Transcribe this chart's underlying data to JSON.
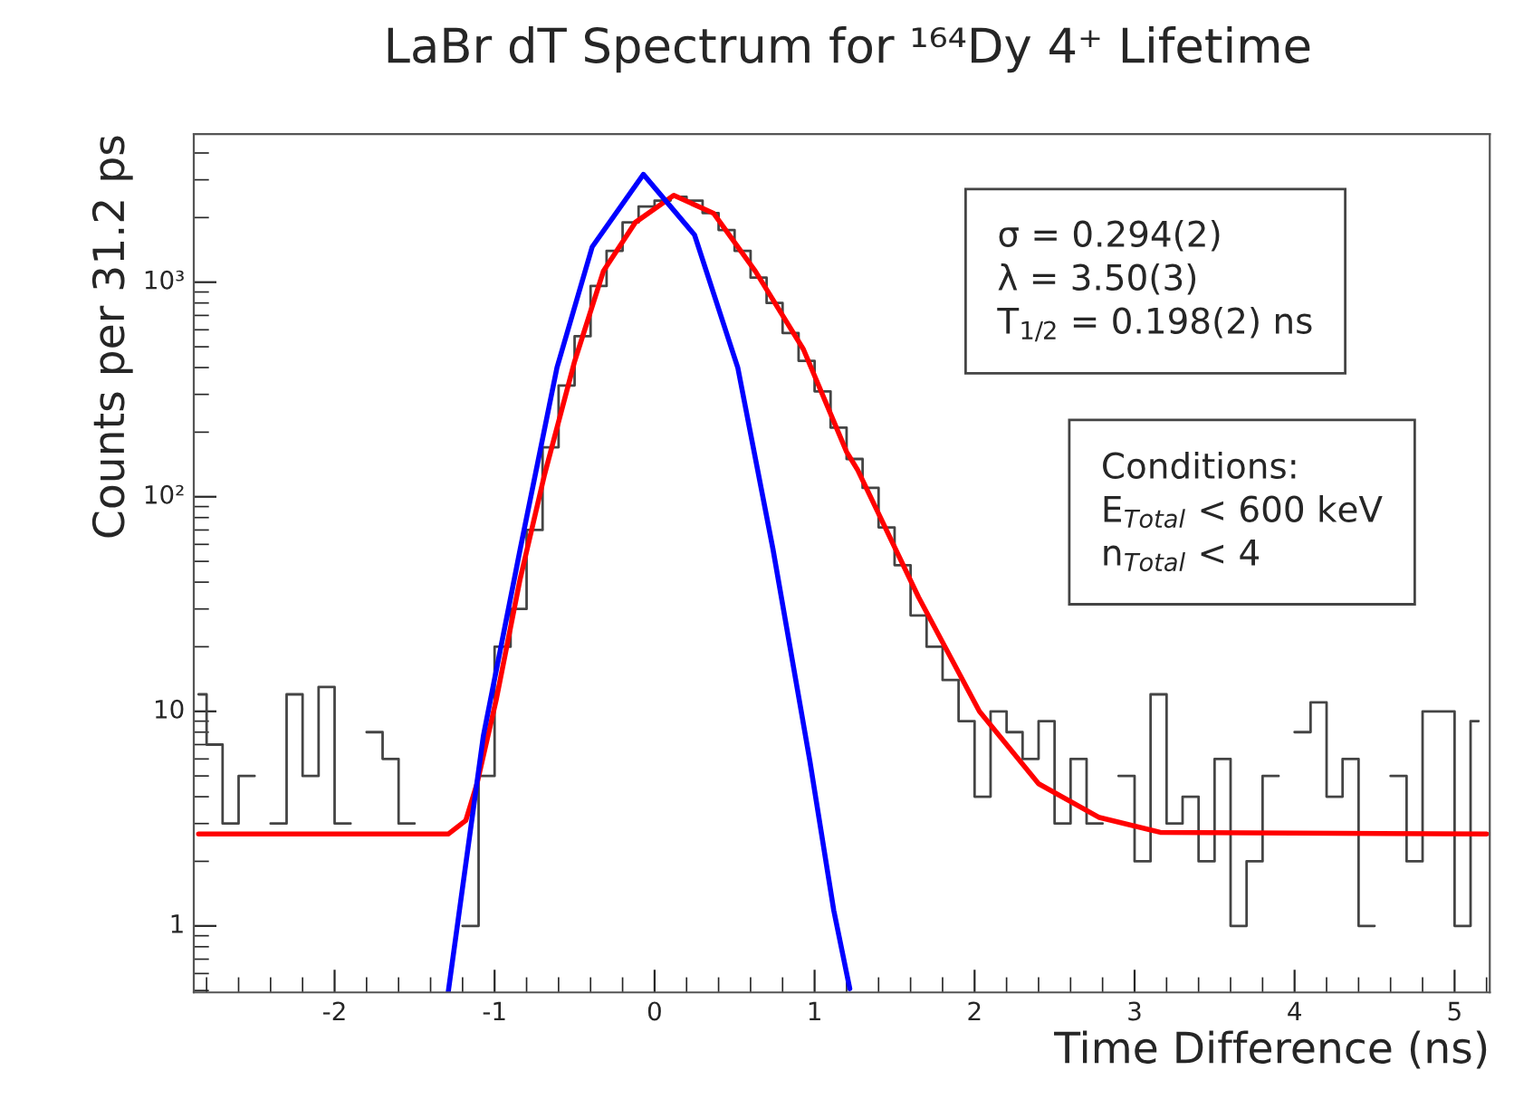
{
  "chart_data": {
    "type": "step",
    "title": "LaBr dT Spectrum for ¹⁶⁴Dy 4⁺ Lifetime",
    "xlabel": "Time Difference (ns)",
    "ylabel": "Counts per 31.2 ps",
    "log": "y",
    "xlim": [
      -2.88,
      5.22
    ],
    "ylim": [
      0.49,
      4900
    ],
    "xticks": [
      -2,
      -1,
      0,
      1,
      2,
      3,
      4,
      5
    ],
    "yticks": [
      1,
      10,
      {
        "value": 100,
        "label": "10²"
      },
      {
        "value": 1000,
        "label": "10³"
      }
    ],
    "grid": false,
    "legend": false,
    "annotations": [
      "σ = 0.294(2)\nλ = 3.50(3)\nT$_{1/2}$ = 0.198(2) ns",
      "Conditions:\nE$_{Total}$ < 600 keV\nn$_{Total}$ < 4"
    ],
    "series": [
      {
        "color": "#444444",
        "x": [
          -2.85,
          -2.75,
          -2.65,
          -2.55,
          -2.45,
          -2.35,
          -2.25,
          -2.15,
          -2.05,
          -1.95,
          -1.85,
          -1.75,
          -1.65,
          -1.55,
          -1.45,
          -1.35,
          -1.25,
          -1.15,
          -1.05,
          -0.95,
          -0.85,
          -0.75,
          -0.65,
          -0.55,
          -0.45,
          -0.35,
          -0.25,
          -0.15,
          -0.05,
          0.05,
          0.15,
          0.25,
          0.35,
          0.45,
          0.55,
          0.65,
          0.75,
          0.85,
          0.95,
          1.05,
          1.15,
          1.25,
          1.35,
          1.45,
          1.55,
          1.65,
          1.75,
          1.85,
          1.95,
          2.05,
          2.15,
          2.25,
          2.35,
          2.45,
          2.55,
          2.65,
          2.75,
          2.85,
          2.95,
          3.05,
          3.15,
          3.25,
          3.35,
          3.45,
          3.55,
          3.65,
          3.75,
          3.85,
          3.95,
          4.05,
          4.15,
          4.25,
          4.35,
          4.45,
          4.55,
          4.65,
          4.75,
          4.85,
          4.95,
          5.05,
          5.15
        ],
        "values": [
          12,
          7,
          3,
          5,
          null,
          3,
          12,
          5,
          13,
          3,
          null,
          8,
          6,
          3,
          null,
          null,
          null,
          1,
          5,
          20,
          30,
          70,
          170,
          330,
          560,
          960,
          1400,
          1900,
          2250,
          2400,
          2500,
          2400,
          2100,
          1750,
          1400,
          1050,
          800,
          580,
          430,
          310,
          210,
          150,
          110,
          72,
          48,
          28,
          20,
          14,
          9,
          4,
          10,
          8,
          6,
          9,
          3,
          6,
          3,
          null,
          5,
          2,
          12,
          3,
          4,
          2,
          6,
          1,
          2,
          5,
          null,
          8,
          11,
          4,
          6,
          1,
          null,
          5,
          2,
          10,
          10,
          1,
          9
        ]
      },
      {
        "type": "line",
        "color": "#ff0000",
        "x": [
          -2.85,
          -1.29,
          -1.18,
          -1.11,
          -0.99,
          -0.84,
          -0.69,
          -0.5,
          -0.32,
          -0.12,
          0.12,
          0.37,
          0.63,
          0.93,
          1.2,
          1.27,
          1.65,
          2.03,
          2.4,
          2.78,
          3.16,
          5.2
        ],
        "values": [
          2.68,
          2.68,
          3.1,
          4.6,
          11.3,
          41.5,
          125,
          427,
          1125,
          1900,
          2540,
          2090,
          1125,
          487,
          162,
          133,
          34,
          10,
          4.6,
          3.2,
          2.73,
          2.68
        ]
      },
      {
        "type": "line",
        "color": "#0000ff",
        "x": [
          -1.29,
          -1.07,
          -0.84,
          -0.61,
          -0.39,
          -0.07,
          0.25,
          0.52,
          0.74,
          0.97,
          1.12,
          1.22
        ],
        "values": [
          0.49,
          7.7,
          57,
          400,
          1460,
          3180,
          1660,
          400,
          57,
          5.9,
          1.18,
          0.51
        ]
      }
    ]
  }
}
